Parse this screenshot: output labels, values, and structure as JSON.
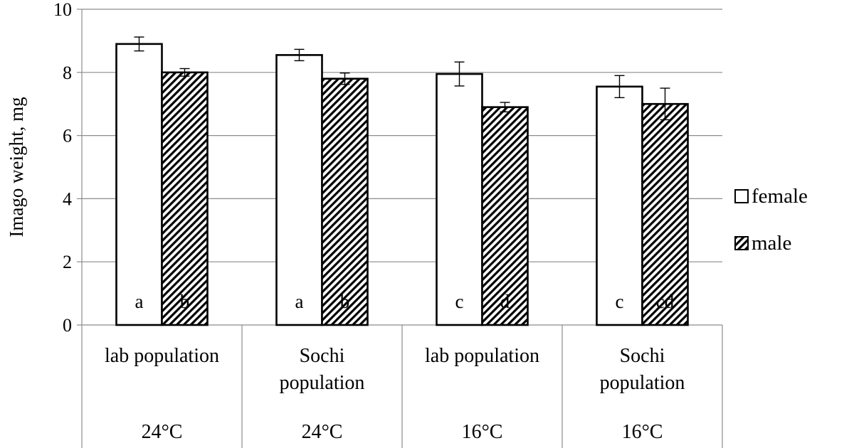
{
  "chart_data": {
    "type": "bar",
    "ylabel": "Imago weight, mg",
    "ylim": [
      0,
      10
    ],
    "yticks": [
      0,
      2,
      4,
      6,
      8,
      10
    ],
    "grid": true,
    "legend_position": "right",
    "categories": [
      {
        "label": [
          "lab population"
        ],
        "temperature": "24°C"
      },
      {
        "label": [
          "Sochi",
          "population"
        ],
        "temperature": "24°C"
      },
      {
        "label": [
          "lab population"
        ],
        "temperature": "16°C"
      },
      {
        "label": [
          "Sochi",
          "population"
        ],
        "temperature": "16°C"
      }
    ],
    "series": [
      {
        "name": "female",
        "pattern": "solid-white",
        "values": [
          8.9,
          8.55,
          7.95,
          7.55
        ],
        "errors": [
          0.22,
          0.18,
          0.38,
          0.35
        ],
        "labels": [
          "a",
          "a",
          "c",
          "c"
        ]
      },
      {
        "name": "male",
        "pattern": "diagonal-hatch",
        "values": [
          8.0,
          7.8,
          6.9,
          7.0
        ],
        "errors": [
          0.12,
          0.18,
          0.15,
          0.5
        ],
        "labels": [
          "b",
          "b",
          "d",
          "cd"
        ]
      }
    ]
  }
}
